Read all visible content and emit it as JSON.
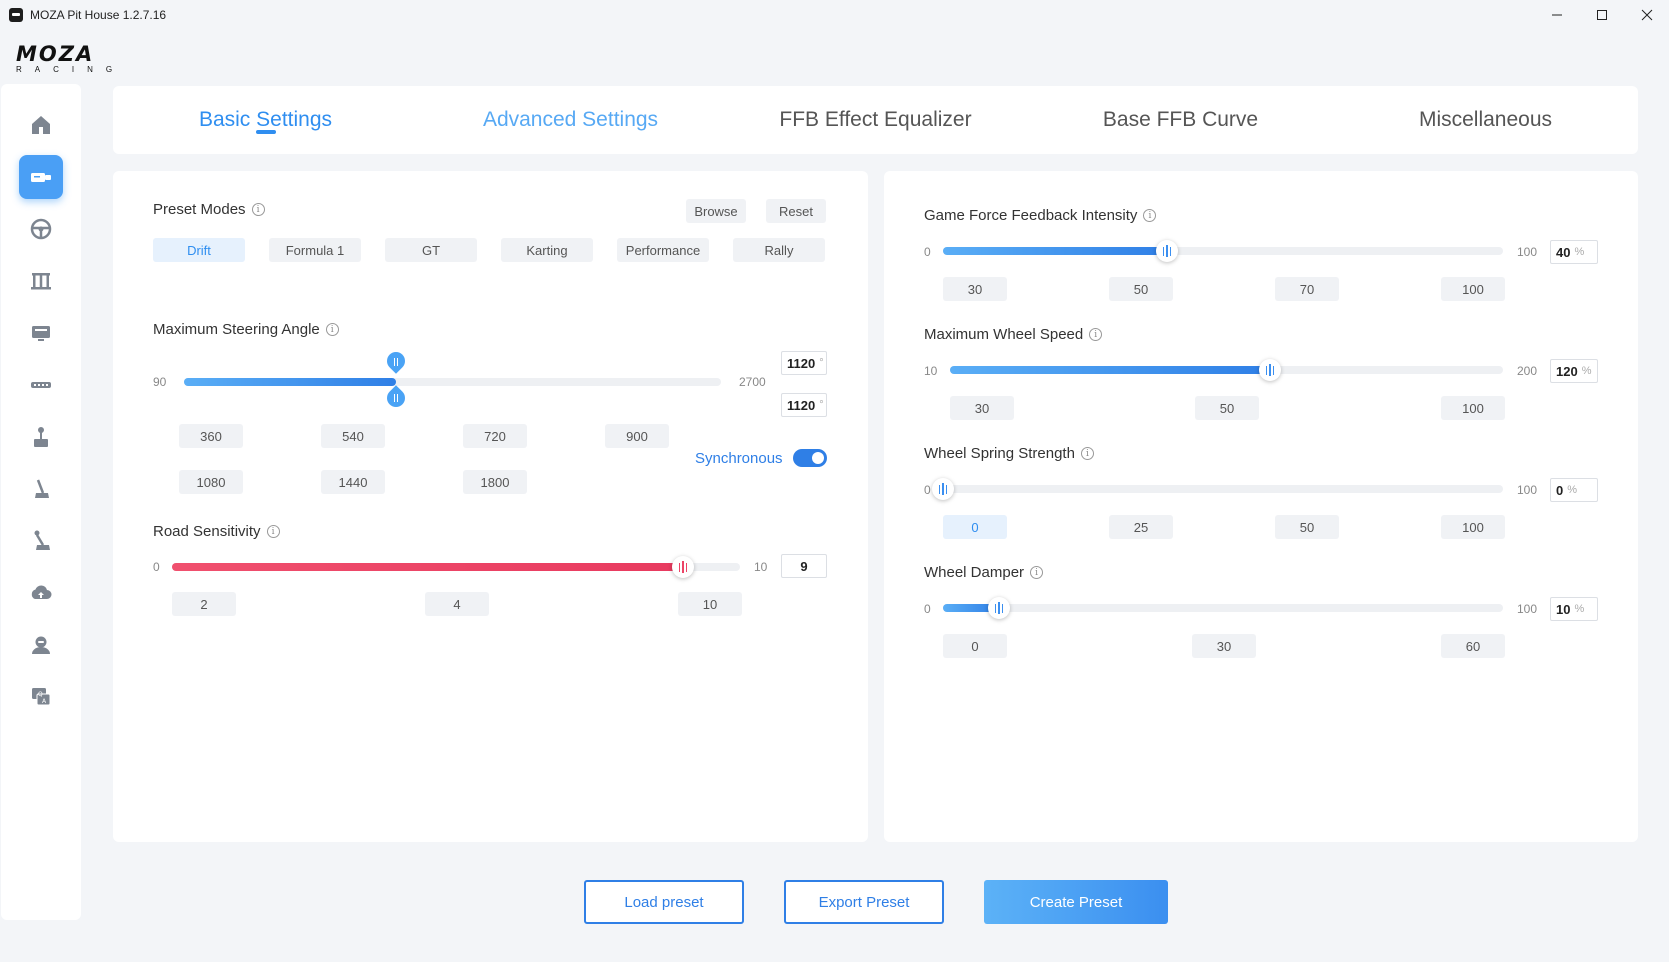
{
  "window": {
    "title": "MOZA Pit House 1.2.7.16",
    "minimize": "—",
    "maximize": "☐",
    "close": "✕"
  },
  "logo": {
    "main": "MOZA",
    "sub": "RACING"
  },
  "sidebar": {
    "items": [
      {
        "icon": "home-icon"
      },
      {
        "icon": "wheelbase-icon",
        "active": true
      },
      {
        "icon": "steering-wheel-icon"
      },
      {
        "icon": "pedals-icon"
      },
      {
        "icon": "dashboard-icon"
      },
      {
        "icon": "handbrake-bar-icon"
      },
      {
        "icon": "shifter-icon"
      },
      {
        "icon": "handbrake-icon"
      },
      {
        "icon": "sequential-shifter-icon"
      },
      {
        "icon": "cloud-icon"
      },
      {
        "icon": "user-icon"
      },
      {
        "icon": "faq-icon"
      }
    ]
  },
  "tabs": [
    {
      "label": "Basic Settings",
      "active": true
    },
    {
      "label": "Advanced Settings"
    },
    {
      "label": "FFB Effect Equalizer"
    },
    {
      "label": "Base FFB Curve"
    },
    {
      "label": "Miscellaneous"
    }
  ],
  "left": {
    "preset": {
      "title": "Preset Modes",
      "browse": "Browse",
      "reset": "Reset",
      "modes": [
        "Drift",
        "Formula 1",
        "GT",
        "Karting",
        "Performance",
        "Rally"
      ],
      "selected": "Drift"
    },
    "steering": {
      "title": "Maximum Steering Angle",
      "min": "90",
      "max": "2700",
      "value_top": "1120",
      "value_bottom": "1120",
      "unit": "°",
      "level": 1120,
      "presets_row1": [
        "360",
        "540",
        "720",
        "900"
      ],
      "presets_row2": [
        "1080",
        "1440",
        "1800"
      ],
      "sync_label": "Synchronous"
    },
    "road": {
      "title": "Road Sensitivity",
      "min": "0",
      "max": "10",
      "value": "9",
      "presets": [
        "2",
        "4",
        "10"
      ]
    }
  },
  "right": {
    "sliders": [
      {
        "title": "Game Force Feedback Intensity",
        "min": "0",
        "max": "100",
        "value": "40",
        "unit": "%",
        "presets": [
          "30",
          "50",
          "70",
          "100"
        ],
        "selected": null
      },
      {
        "title": "Maximum Wheel Speed",
        "min": "10",
        "max": "200",
        "value": "120",
        "unit": "%",
        "presets": [
          "30",
          "50",
          "100"
        ],
        "selected": null
      },
      {
        "title": "Wheel Spring Strength",
        "min": "0",
        "max": "100",
        "value": "0",
        "unit": "%",
        "presets": [
          "0",
          "25",
          "50",
          "100"
        ],
        "selected": "0"
      },
      {
        "title": "Wheel Damper",
        "min": "0",
        "max": "100",
        "value": "10",
        "unit": "%",
        "presets": [
          "0",
          "30",
          "60"
        ],
        "selected": null
      }
    ]
  },
  "buttons": {
    "load": "Load preset",
    "export": "Export Preset",
    "create": "Create Preset"
  },
  "colors": {
    "accent": "#2f7fe6",
    "road": "#ec4466"
  }
}
